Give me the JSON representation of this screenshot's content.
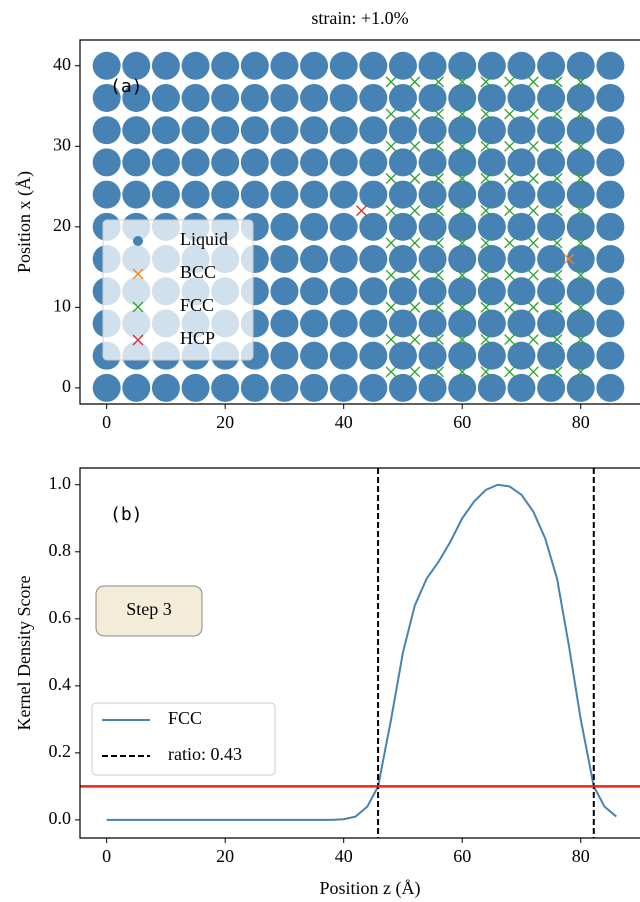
{
  "chart_data": [
    {
      "type": "scatter",
      "title": "strain: +1.0%",
      "annotation": "(a)",
      "ylabel": "Position x (Å)",
      "xlim": [
        -4.5,
        90
      ],
      "ylim": [
        -2,
        43.2
      ],
      "xticks": [
        0,
        20,
        40,
        60,
        80
      ],
      "yticks": [
        0,
        10,
        20,
        30,
        40
      ],
      "legend": "upper left",
      "series": [
        {
          "name": "Liquid",
          "color": "#4682b4",
          "marker": "o",
          "x": [
            0,
            5,
            10,
            15,
            20,
            25,
            30,
            35,
            40,
            45,
            50,
            55,
            60,
            65,
            70,
            75,
            80,
            85,
            0,
            5,
            10,
            15,
            20,
            25,
            30,
            35,
            40,
            45,
            50,
            55,
            60,
            65,
            70,
            75,
            80,
            85,
            0,
            5,
            10,
            15,
            20,
            25,
            30,
            35,
            40,
            45,
            50,
            55,
            60,
            65,
            70,
            75,
            80,
            85,
            0,
            5,
            10,
            15,
            20,
            25,
            30,
            35,
            40,
            45,
            50,
            55,
            60,
            65,
            70,
            75,
            80,
            85,
            0,
            5,
            10,
            15,
            20,
            25,
            30,
            35,
            40,
            45,
            50,
            55,
            60,
            65,
            70,
            75,
            80,
            85,
            0,
            5,
            10,
            15,
            20,
            25,
            30,
            35,
            40,
            45,
            50,
            55,
            60,
            65,
            70,
            75,
            80,
            85,
            0,
            5,
            10,
            15,
            20,
            25,
            30,
            35,
            40,
            45,
            50,
            55,
            60,
            65,
            70,
            75,
            80,
            85,
            0,
            5,
            10,
            15,
            20,
            25,
            30,
            35,
            40,
            45,
            50,
            55,
            60,
            65,
            70,
            75,
            80,
            85,
            0,
            5,
            10,
            15,
            20,
            25,
            30,
            35,
            40,
            45,
            50,
            55,
            60,
            65,
            70,
            75,
            80,
            85,
            0,
            5,
            10,
            15,
            20,
            25,
            30,
            35,
            40,
            45,
            50,
            55,
            60,
            65,
            70,
            75,
            80,
            85,
            0,
            5,
            10,
            15,
            20,
            25,
            30,
            35,
            40,
            45,
            50,
            55,
            60,
            65,
            70,
            75,
            80,
            85
          ],
          "y": [
            0,
            0,
            0,
            0,
            0,
            0,
            0,
            0,
            0,
            0,
            0,
            0,
            0,
            0,
            0,
            0,
            0,
            0,
            4,
            4,
            4,
            4,
            4,
            4,
            4,
            4,
            4,
            4,
            4,
            4,
            4,
            4,
            4,
            4,
            4,
            4,
            8,
            8,
            8,
            8,
            8,
            8,
            8,
            8,
            8,
            8,
            8,
            8,
            8,
            8,
            8,
            8,
            8,
            8,
            12,
            12,
            12,
            12,
            12,
            12,
            12,
            12,
            12,
            12,
            12,
            12,
            12,
            12,
            12,
            12,
            12,
            12,
            16,
            16,
            16,
            16,
            16,
            16,
            16,
            16,
            16,
            16,
            16,
            16,
            16,
            16,
            16,
            16,
            16,
            16,
            20,
            20,
            20,
            20,
            20,
            20,
            20,
            20,
            20,
            20,
            20,
            20,
            20,
            20,
            20,
            20,
            20,
            20,
            24,
            24,
            24,
            24,
            24,
            24,
            24,
            24,
            24,
            24,
            24,
            24,
            24,
            24,
            24,
            24,
            24,
            24,
            28,
            28,
            28,
            28,
            28,
            28,
            28,
            28,
            28,
            28,
            28,
            28,
            28,
            28,
            28,
            28,
            28,
            28,
            32,
            32,
            32,
            32,
            32,
            32,
            32,
            32,
            32,
            32,
            32,
            32,
            32,
            32,
            32,
            32,
            32,
            32,
            36,
            36,
            36,
            36,
            36,
            36,
            36,
            36,
            36,
            36,
            36,
            36,
            36,
            36,
            36,
            36,
            36,
            36,
            40,
            40,
            40,
            40,
            40,
            40,
            40,
            40,
            40,
            40,
            40,
            40,
            40,
            40,
            40,
            40,
            40,
            40
          ]
        },
        {
          "name": "BCC",
          "color": "#ff7f0e",
          "marker": "x",
          "x": [
            78
          ],
          "y": [
            16
          ]
        },
        {
          "name": "FCC",
          "color": "#2ca02c",
          "marker": "x",
          "x": [
            48,
            52,
            56,
            60,
            64,
            68,
            72,
            76,
            80,
            48,
            52,
            56,
            60,
            64,
            68,
            72,
            76,
            80,
            48,
            52,
            56,
            60,
            64,
            68,
            72,
            76,
            80,
            48,
            52,
            56,
            60,
            64,
            68,
            72,
            76,
            80,
            48,
            52,
            56,
            60,
            64,
            68,
            72,
            76,
            80,
            48,
            52,
            56,
            60,
            64,
            68,
            72,
            76,
            80,
            48,
            52,
            56,
            60,
            64,
            68,
            72,
            76,
            80,
            48,
            52,
            56,
            60,
            64,
            68,
            72,
            76,
            80,
            48,
            52,
            56,
            60,
            64,
            68,
            72,
            76,
            80,
            48,
            52,
            56,
            60,
            64,
            68,
            72,
            76,
            80
          ],
          "y": [
            2,
            2,
            2,
            2,
            2,
            2,
            2,
            2,
            2,
            6,
            6,
            6,
            6,
            6,
            6,
            6,
            6,
            6,
            10,
            10,
            10,
            10,
            10,
            10,
            10,
            10,
            10,
            14,
            14,
            14,
            14,
            14,
            14,
            14,
            14,
            14,
            18,
            18,
            18,
            18,
            18,
            18,
            18,
            18,
            18,
            22,
            22,
            22,
            22,
            22,
            22,
            22,
            22,
            22,
            26,
            26,
            26,
            26,
            26,
            26,
            26,
            26,
            26,
            30,
            30,
            30,
            30,
            30,
            30,
            30,
            30,
            30,
            34,
            34,
            34,
            34,
            34,
            34,
            34,
            34,
            34,
            38,
            38,
            38,
            38,
            38,
            38,
            38,
            38,
            38
          ]
        },
        {
          "name": "HCP",
          "color": "#d62728",
          "marker": "x",
          "x": [
            43
          ],
          "y": [
            22
          ]
        }
      ]
    },
    {
      "type": "line",
      "annotation": "(b)",
      "textbox": "Step 3",
      "xlabel": "Position z (Å)",
      "ylabel": "Kernel Density Score",
      "xlim": [
        -4.5,
        90
      ],
      "ylim": [
        -0.054,
        1.05
      ],
      "xticks": [
        0,
        20,
        40,
        60,
        80
      ],
      "yticks": [
        0.0,
        0.2,
        0.4,
        0.6,
        0.8,
        {
          "value": 1.0,
          "label": "1.0"
        }
      ],
      "yticklabels": [
        "0.0",
        "0.2",
        "0.4",
        "0.6",
        "0.8"
      ],
      "legend": "lower left",
      "series": [
        {
          "name": "FCC",
          "color": "#4682b4",
          "x": [
            0,
            10,
            20,
            30,
            38,
            40,
            42,
            44,
            45.8,
            48,
            50,
            52,
            54,
            56,
            58,
            60,
            62,
            64,
            66,
            68,
            70,
            72,
            74,
            76,
            78,
            80,
            82.2,
            84,
            86
          ],
          "y": [
            0,
            0,
            0,
            0,
            0,
            0.002,
            0.01,
            0.04,
            0.1,
            0.3,
            0.5,
            0.64,
            0.72,
            0.77,
            0.83,
            0.9,
            0.95,
            0.985,
            1.0,
            0.995,
            0.97,
            0.92,
            0.84,
            0.72,
            0.52,
            0.3,
            0.1,
            0.04,
            0.01
          ]
        }
      ],
      "vlines": {
        "name": "ratio: 0.43",
        "color": "#000000",
        "x": [
          45.8,
          82.2
        ]
      },
      "hline": {
        "color": "#e8251b",
        "y": 0.1
      }
    }
  ]
}
